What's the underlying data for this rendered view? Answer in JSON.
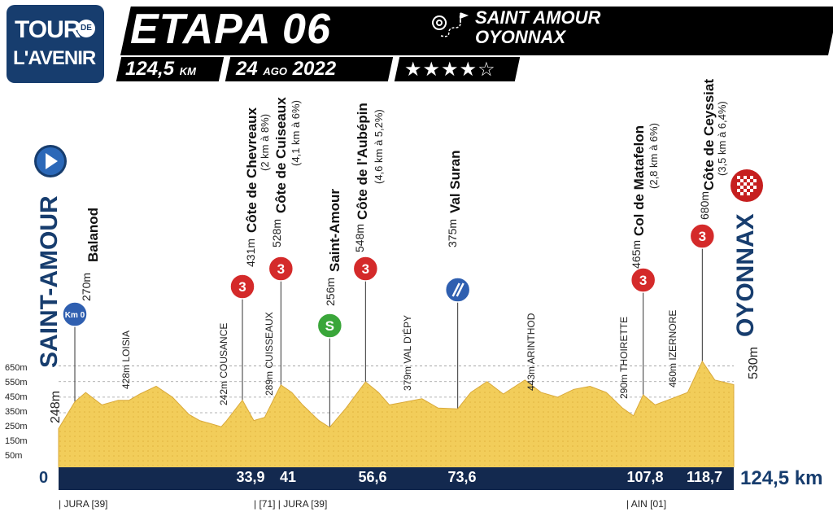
{
  "logo": {
    "line1": "TOUR",
    "de": "DE",
    "line2": "L'AVENIR"
  },
  "header": {
    "stage_title": "ETAPA 06",
    "route_from": "SAINT AMOUR",
    "route_to": "OYONNAX",
    "distance_value": "124,5",
    "distance_unit": "KM",
    "date_day": "24",
    "date_month": "AGO",
    "date_year": "2022",
    "stars": "★★★★☆"
  },
  "profile": {
    "start_label": "SAINT-AMOUR",
    "start_alt": "248m",
    "finish_label": "OYONNAX",
    "finish_alt": "530m",
    "alt_ticks": [
      "650m",
      "550m",
      "450m",
      "350m",
      "250m",
      "150m",
      "50m"
    ],
    "zero_label": "0",
    "total_label": "124,5 km",
    "km_marks": [
      "33,9",
      "41",
      "56,6",
      "73,6",
      "107,8",
      "118,7"
    ],
    "departments": [
      "| JURA [39]",
      "| [71] | JURA [39]",
      "| AIN [01]"
    ],
    "km0_badge": "Km 0",
    "feed_badge": "S",
    "features": [
      {
        "alt": "270m",
        "name": "Balanod",
        "detail": ""
      },
      {
        "alt": "431m",
        "name": "Côte de Chevreaux",
        "detail": "(2 km à 8%)"
      },
      {
        "alt": "528m",
        "name": "Côte de Cuiseaux",
        "detail": "(4,1 km à 6%)"
      },
      {
        "alt": "256m",
        "name": "Saint-Amour",
        "detail": ""
      },
      {
        "alt": "548m",
        "name": "Côte de l'Aubépin",
        "detail": "(4,6 km à 5,2%)"
      },
      {
        "alt": "375m",
        "name": "Val Suran",
        "detail": ""
      },
      {
        "alt": "465m",
        "name": "Col de Matafelon",
        "detail": "(2,8 km à 6%)"
      },
      {
        "alt": "680m",
        "name": "Côte de Ceyssiat",
        "detail": "(3,5 km à 6,4%)"
      }
    ],
    "category_badges": [
      "3",
      "3",
      "3",
      "3",
      "3"
    ],
    "towns": [
      "428m LOISIA",
      "242m COUSANCE",
      "289m CUISSEAUX",
      "379m VAL D'ÉPY",
      "443m ARINTHOD",
      "290m THOIRETTE",
      "460m IZERNORE"
    ]
  },
  "chart_data": {
    "type": "area",
    "xlabel": "",
    "ylabel": "",
    "xlim": [
      0,
      124.5
    ],
    "ylim": [
      0,
      700
    ],
    "x": [
      0,
      3,
      5,
      8,
      11,
      13,
      15,
      18,
      21,
      24,
      26,
      28,
      30,
      31,
      33.9,
      36,
      38,
      41,
      43,
      45,
      48,
      50,
      53,
      56.6,
      59,
      61,
      64,
      67,
      70,
      73.6,
      76,
      79,
      82,
      86,
      89,
      92,
      95,
      98,
      101,
      104,
      106,
      107.8,
      110,
      113,
      116,
      118.7,
      121,
      124.5
    ],
    "series": [
      {
        "values": [
          248,
          420,
          480,
          400,
          430,
          430,
          470,
          520,
          450,
          340,
          300,
          280,
          260,
          300,
          431,
          300,
          320,
          528,
          480,
          400,
          300,
          256,
          380,
          548,
          480,
          400,
          420,
          440,
          380,
          375,
          480,
          550,
          470,
          560,
          480,
          450,
          500,
          520,
          480,
          380,
          330,
          465,
          400,
          440,
          480,
          680,
          560,
          530
        ]
      }
    ],
    "km_marks": [
      33.9,
      41,
      56.6,
      73.6,
      107.8,
      118.7
    ]
  }
}
